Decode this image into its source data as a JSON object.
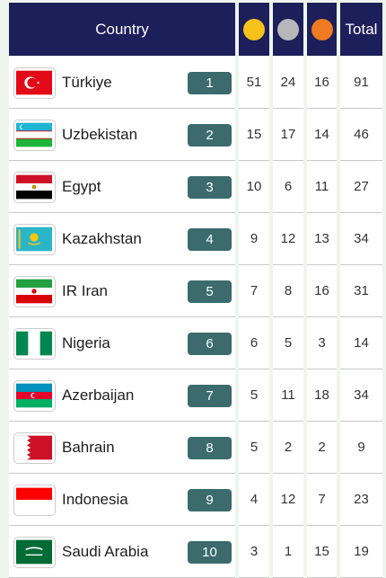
{
  "table": {
    "header": {
      "country": "Country",
      "total": "Total"
    },
    "rows": [
      {
        "country": "Türkiye",
        "rank": 1,
        "gold": 51,
        "silver": 24,
        "bronze": 16,
        "total": 91
      },
      {
        "country": "Uzbekistan",
        "rank": 2,
        "gold": 15,
        "silver": 17,
        "bronze": 14,
        "total": 46
      },
      {
        "country": "Egypt",
        "rank": 3,
        "gold": 10,
        "silver": 6,
        "bronze": 11,
        "total": 27
      },
      {
        "country": "Kazakhstan",
        "rank": 4,
        "gold": 9,
        "silver": 12,
        "bronze": 13,
        "total": 34
      },
      {
        "country": "IR Iran",
        "rank": 5,
        "gold": 7,
        "silver": 8,
        "bronze": 16,
        "total": 31
      },
      {
        "country": "Nigeria",
        "rank": 6,
        "gold": 6,
        "silver": 5,
        "bronze": 3,
        "total": 14
      },
      {
        "country": "Azerbaijan",
        "rank": 7,
        "gold": 5,
        "silver": 11,
        "bronze": 18,
        "total": 34
      },
      {
        "country": "Bahrain",
        "rank": 8,
        "gold": 5,
        "silver": 2,
        "bronze": 2,
        "total": 9
      },
      {
        "country": "Indonesia",
        "rank": 9,
        "gold": 4,
        "silver": 12,
        "bronze": 7,
        "total": 23
      },
      {
        "country": "Saudi Arabia",
        "rank": 10,
        "gold": 3,
        "silver": 1,
        "bronze": 15,
        "total": 19
      }
    ]
  }
}
